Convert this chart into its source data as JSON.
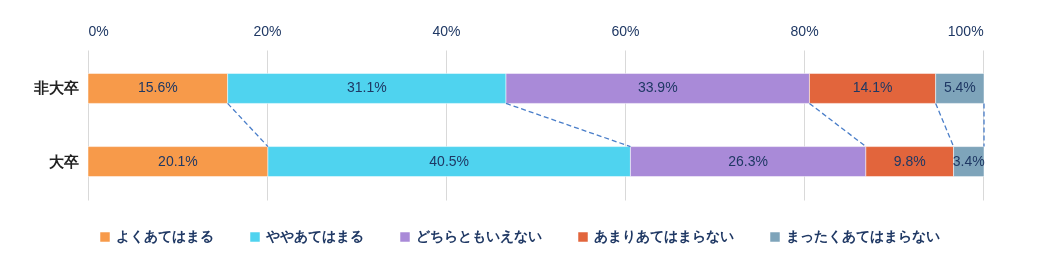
{
  "chart_data": {
    "type": "bar",
    "orientation": "horizontal",
    "stacked": true,
    "categories": [
      "非大卒",
      "大卒"
    ],
    "series": [
      {
        "name": "よくあてはまる",
        "color": "#f79a4a",
        "values": [
          15.6,
          20.1
        ],
        "value_labels": [
          "15.6%",
          "20.1%"
        ]
      },
      {
        "name": "ややあてはまる",
        "color": "#4fd3ef",
        "values": [
          31.1,
          40.5
        ],
        "value_labels": [
          "31.1%",
          "40.5%"
        ]
      },
      {
        "name": "どちらともいえない",
        "color": "#a98ad8",
        "values": [
          33.9,
          26.3
        ],
        "value_labels": [
          "33.9%",
          "26.3%"
        ]
      },
      {
        "name": "あまりあてはまらない",
        "color": "#e2653c",
        "values": [
          14.1,
          9.8
        ],
        "value_labels": [
          "14.1%",
          "9.8%"
        ]
      },
      {
        "name": "まったくあてはまらない",
        "color": "#7ea4ba",
        "values": [
          5.4,
          3.4
        ],
        "value_labels": [
          "5.4%",
          "3.4%"
        ]
      }
    ],
    "xlim": [
      0,
      100.1
    ],
    "xticks": [
      {
        "value": 0,
        "label": "0%"
      },
      {
        "value": 20,
        "label": "20%"
      },
      {
        "value": 40,
        "label": "40%"
      },
      {
        "value": 60,
        "label": "60%"
      },
      {
        "value": 80,
        "label": "80%"
      },
      {
        "value": 100,
        "label": "100%"
      }
    ],
    "grid": "x",
    "legend": "bottom"
  }
}
